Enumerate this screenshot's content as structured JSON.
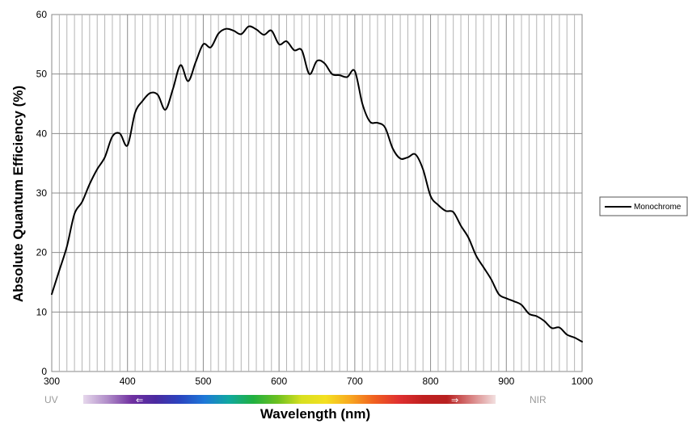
{
  "chart_data": {
    "type": "line",
    "title": "",
    "xlabel": "Wavelength (nm)",
    "ylabel": "Absolute Quantum Efficiency (%)",
    "xlim": [
      300,
      1000
    ],
    "ylim": [
      0,
      60
    ],
    "x_ticks": [
      "300",
      "400",
      "500",
      "600",
      "700",
      "800",
      "900",
      "1000"
    ],
    "y_ticks": [
      "0",
      "10",
      "20",
      "30",
      "40",
      "50",
      "60"
    ],
    "grid": true,
    "legend_position": "right",
    "series": [
      {
        "name": "Monochrome",
        "color": "#000000",
        "x": [
          300,
          310,
          320,
          330,
          340,
          350,
          360,
          370,
          380,
          390,
          400,
          410,
          420,
          430,
          440,
          450,
          460,
          470,
          480,
          490,
          500,
          510,
          520,
          530,
          540,
          550,
          560,
          570,
          580,
          590,
          600,
          610,
          620,
          630,
          640,
          650,
          660,
          670,
          680,
          690,
          700,
          710,
          720,
          730,
          740,
          750,
          760,
          770,
          780,
          790,
          800,
          810,
          820,
          830,
          840,
          850,
          860,
          870,
          880,
          890,
          900,
          910,
          920,
          930,
          940,
          950,
          960,
          970,
          980,
          990,
          1000
        ],
        "values": [
          13,
          17,
          21,
          26.5,
          28.5,
          31.5,
          34,
          36,
          39.5,
          40,
          38,
          43.5,
          45.5,
          46.8,
          46.5,
          44,
          47.5,
          51.5,
          48.8,
          52,
          55,
          54.5,
          56.8,
          57.6,
          57.3,
          56.7,
          58,
          57.5,
          56.6,
          57.3,
          55,
          55.5,
          54,
          54,
          50,
          52.2,
          51.8,
          50,
          49.8,
          49.5,
          50.5,
          45,
          42,
          41.8,
          41,
          37.5,
          35.8,
          36,
          36.5,
          34,
          29.5,
          28,
          27,
          26.8,
          24.5,
          22.5,
          19.5,
          17.5,
          15.5,
          13,
          12.3,
          11.8,
          11.2,
          9.7,
          9.3,
          8.5,
          7.3,
          7.4,
          6.2,
          5.7,
          5
        ]
      }
    ],
    "bands": {
      "uv_label": "UV",
      "nir_label": "NIR",
      "arrow_left": "⇐",
      "arrow_right": "⇒",
      "spectrum_colors": [
        "#e6d8ec",
        "#b08cc8",
        "#7030a0",
        "#4b2aa0",
        "#2a45c0",
        "#1e78d8",
        "#10a8a0",
        "#20b040",
        "#6cc020",
        "#d8e020",
        "#f4e020",
        "#f8a820",
        "#f06020",
        "#e03030",
        "#c02020",
        "#b82020",
        "#d88080",
        "#f2e0e0"
      ]
    }
  }
}
